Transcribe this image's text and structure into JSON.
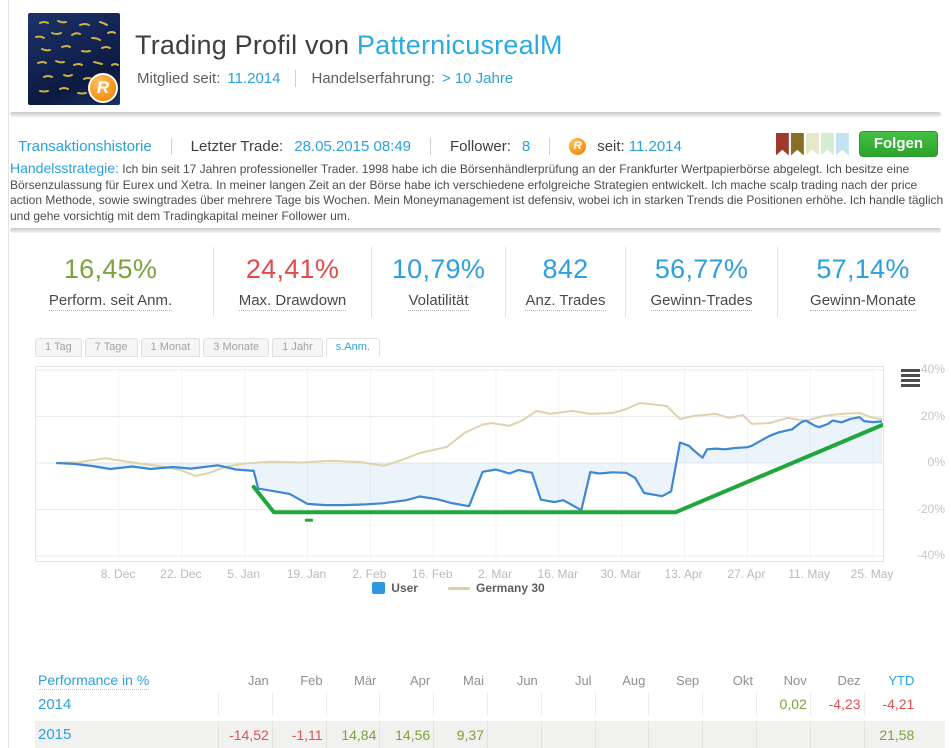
{
  "header": {
    "title_prefix": "Trading Profil von",
    "trader_name": "PatternicusrealM",
    "member_since_label": "Mitglied seit:",
    "member_since_value": "11.2014",
    "experience_label": "Handelserfahrung:",
    "experience_value": "> 10 Jahre",
    "avatar_description": "school of small gold fish on dark blue water",
    "badge_letter": "R"
  },
  "meta_bar": {
    "history_link": "Transaktionshistorie",
    "last_trade_label": "Letzter Trade:",
    "last_trade_value": "28.05.2015 08:49",
    "follower_label": "Follower:",
    "follower_value": "8",
    "since_label": "seit:",
    "since_value": "11.2014",
    "follow_button": "Folgen",
    "follow_button_color": "#35b234",
    "ribbons": [
      {
        "name": "ribbon-dark-red",
        "color": "#9d3a2b"
      },
      {
        "name": "ribbon-olive-gold",
        "color": "#8c6d25"
      },
      {
        "name": "ribbon-cream",
        "color": "#e7e8c9"
      },
      {
        "name": "ribbon-pale-green",
        "color": "#d4edd0"
      },
      {
        "name": "ribbon-pale-blue",
        "color": "#c3e3ef"
      }
    ]
  },
  "strategy": {
    "label": "Handelsstrategie:",
    "text": "Ich bin seit 17 Jahren professioneller Trader. 1998 habe ich die Börsenhändlerprüfung an der Frankfurter Wertpapierbörse abgelegt. Ich besitze eine Börsenzulassung für Eurex und Xetra. In meiner langen Zeit an der Börse habe ich verschiedene erfolgreiche Strategien entwickelt. Ich mache scalp trading nach der price action Methode, sowie swingtrades über mehrere Tage bis Wochen. Mein Moneymanagement ist defensiv, wobei ich in starken Trends die Positionen erhöhe. Ich handle täglich und gehe vorsichtig mit dem Tradingkapital meiner Follower um."
  },
  "stats": [
    {
      "name": "performance-since-signup",
      "value": "16,45%",
      "label": "Perform. seit Anm.",
      "color": "#7ba23c"
    },
    {
      "name": "max-drawdown",
      "value": "24,41%",
      "label": "Max. Drawdown",
      "color": "#e04c4c"
    },
    {
      "name": "volatility",
      "value": "10,79%",
      "label": "Volatilität",
      "color": "#2d9fdf"
    },
    {
      "name": "trade-count",
      "value": "842",
      "label": "Anz. Trades",
      "color": "#2d9fdf"
    },
    {
      "name": "winning-trades",
      "value": "56,77%",
      "label": "Gewinn-Trades",
      "color": "#2d9fdf"
    },
    {
      "name": "winning-months",
      "value": "57,14%",
      "label": "Gewinn-Monate",
      "color": "#2d9fdf"
    }
  ],
  "chart": {
    "tabs": [
      {
        "name": "tab-1-tag",
        "label": "1 Tag",
        "active": false
      },
      {
        "name": "tab-7-tage",
        "label": "7 Tage",
        "active": false
      },
      {
        "name": "tab-1-monat",
        "label": "1 Monat",
        "active": false
      },
      {
        "name": "tab-3-monate",
        "label": "3 Monate",
        "active": false
      },
      {
        "name": "tab-1-jahr",
        "label": "1 Jahr",
        "active": false
      },
      {
        "name": "tab-s-anm",
        "label": "s.Anm.",
        "active": true
      }
    ],
    "legend": [
      {
        "name": "legend-user",
        "label": "User",
        "color": "#2f96e0",
        "swatch": "square"
      },
      {
        "name": "legend-germany-30",
        "label": "Germany 30",
        "color": "#d9cfa6",
        "swatch": "line"
      }
    ]
  },
  "chart_data": {
    "type": "line",
    "x_unit": "days since 24 Nov 2014",
    "ylim": [
      -40,
      40
    ],
    "grid": true,
    "legend_position": "bottom",
    "y_ticks": [
      {
        "label": "40%",
        "value": 40
      },
      {
        "label": "20%",
        "value": 20
      },
      {
        "label": "0%",
        "value": 0
      },
      {
        "label": "-20%",
        "value": -20
      },
      {
        "label": "-40%",
        "value": -40
      }
    ],
    "x_ticks": [
      {
        "label": "8. Dec",
        "day": 14
      },
      {
        "label": "22. Dec",
        "day": 28
      },
      {
        "label": "5. Jan",
        "day": 42
      },
      {
        "label": "19. Jan",
        "day": 56
      },
      {
        "label": "2. Feb",
        "day": 70
      },
      {
        "label": "16. Feb",
        "day": 84
      },
      {
        "label": "2. Mar",
        "day": 98
      },
      {
        "label": "16. Mar",
        "day": 112
      },
      {
        "label": "30. Mar",
        "day": 126
      },
      {
        "label": "13. Apr",
        "day": 140
      },
      {
        "label": "27. Apr",
        "day": 154
      },
      {
        "label": "11. May",
        "day": 168
      },
      {
        "label": "25. May",
        "day": 182
      }
    ],
    "series": [
      {
        "name": "User",
        "color": "#3d87d3",
        "fill_to_zero": true,
        "fill_opacity": 0.1,
        "data": [
          [
            0,
            0
          ],
          [
            4,
            -0.4
          ],
          [
            8,
            -1.3
          ],
          [
            12,
            -2.6
          ],
          [
            17,
            -1.5
          ],
          [
            21,
            -2.6
          ],
          [
            26,
            -1.7
          ],
          [
            30,
            -2.4
          ],
          [
            36,
            -1.0
          ],
          [
            40,
            -2.8
          ],
          [
            44,
            -3.4
          ],
          [
            45,
            -11.0
          ],
          [
            49,
            -12.3
          ],
          [
            52,
            -13.3
          ],
          [
            56,
            -17.6
          ],
          [
            60,
            -18.1
          ],
          [
            64,
            -18.1
          ],
          [
            69,
            -17.8
          ],
          [
            73,
            -17.3
          ],
          [
            78,
            -16.0
          ],
          [
            81,
            -14.4
          ],
          [
            85,
            -15.6
          ],
          [
            88,
            -17.2
          ],
          [
            92,
            -18.6
          ],
          [
            95,
            -3.8
          ],
          [
            98,
            -2.8
          ],
          [
            101,
            -4.5
          ],
          [
            103,
            -3.0
          ],
          [
            106,
            -4.2
          ],
          [
            108,
            -15.8
          ],
          [
            111,
            -16.8
          ],
          [
            113,
            -16.0
          ],
          [
            117,
            -20.3
          ],
          [
            119,
            -3.9
          ],
          [
            121,
            -4.5
          ],
          [
            124,
            -4.0
          ],
          [
            127,
            -4.2
          ],
          [
            129,
            -6.4
          ],
          [
            131,
            -12.9
          ],
          [
            133,
            -13.6
          ],
          [
            135,
            -14.3
          ],
          [
            137,
            -12.2
          ],
          [
            139,
            8.8
          ],
          [
            141,
            7.4
          ],
          [
            142,
            5.5
          ],
          [
            144,
            2.3
          ],
          [
            145,
            5.9
          ],
          [
            147,
            6.2
          ],
          [
            149,
            5.9
          ],
          [
            151,
            6.4
          ],
          [
            154,
            6.8
          ],
          [
            155,
            7.4
          ],
          [
            157,
            9.6
          ],
          [
            159,
            11.7
          ],
          [
            161,
            13.2
          ],
          [
            164,
            14.5
          ],
          [
            166,
            17.5
          ],
          [
            167,
            18.3
          ],
          [
            169,
            16.1
          ],
          [
            170,
            15.4
          ],
          [
            172,
            16.8
          ],
          [
            173,
            18.3
          ],
          [
            175,
            17.5
          ],
          [
            177,
            19.0
          ],
          [
            179,
            19.7
          ],
          [
            180,
            18.0
          ],
          [
            182,
            17.6
          ],
          [
            184,
            17.9
          ]
        ]
      },
      {
        "name": "Germany 30",
        "color": "#ddd3ac",
        "data": [
          [
            0,
            0
          ],
          [
            5,
            0.3
          ],
          [
            11,
            2.0
          ],
          [
            17,
            0.2
          ],
          [
            23,
            -1.3
          ],
          [
            28,
            -3.2
          ],
          [
            31,
            -5.6
          ],
          [
            34,
            -4.3
          ],
          [
            38,
            -1.5
          ],
          [
            42,
            -0.2
          ],
          [
            48,
            0.5
          ],
          [
            55,
            0.2
          ],
          [
            61,
            1.0
          ],
          [
            68,
            0.4
          ],
          [
            73,
            -1.2
          ],
          [
            77,
            1.3
          ],
          [
            81,
            4.3
          ],
          [
            87,
            6.9
          ],
          [
            91,
            13.0
          ],
          [
            95,
            16.5
          ],
          [
            97,
            17.2
          ],
          [
            101,
            16.0
          ],
          [
            104,
            18.5
          ],
          [
            107,
            22.4
          ],
          [
            110,
            21.1
          ],
          [
            115,
            22.4
          ],
          [
            119,
            21.1
          ],
          [
            124,
            21.5
          ],
          [
            127,
            23.2
          ],
          [
            130,
            25.8
          ],
          [
            132,
            25.4
          ],
          [
            136,
            24.5
          ],
          [
            139,
            18.9
          ],
          [
            142,
            20.2
          ],
          [
            147,
            21.1
          ],
          [
            150,
            19.4
          ],
          [
            153,
            20.6
          ],
          [
            155,
            16.8
          ],
          [
            159,
            17.2
          ],
          [
            163,
            19.4
          ],
          [
            167,
            18.1
          ],
          [
            171,
            20.2
          ],
          [
            175,
            21.1
          ],
          [
            179,
            21.5
          ],
          [
            182,
            19.4
          ],
          [
            184,
            18.9
          ]
        ]
      }
    ],
    "trend_line": {
      "name": "trend",
      "color": "#1fa73d",
      "width": 4,
      "data": [
        [
          44,
          -10.3
        ],
        [
          48.5,
          -21.2
        ],
        [
          138,
          -21.2
        ],
        [
          184,
          16.3
        ]
      ],
      "marker": {
        "day": 56.3,
        "value": -24.6
      }
    }
  },
  "table": {
    "title": "Performance in %",
    "months": [
      "Jan",
      "Feb",
      "Mär",
      "Apr",
      "Mai",
      "Jun",
      "Jul",
      "Aug",
      "Sep",
      "Okt",
      "Nov",
      "Dez"
    ],
    "ytd_label": "YTD",
    "pos_color": "#7aa23c",
    "neg_color": "#dc5151",
    "rows": [
      {
        "year": "2014",
        "shaded": false,
        "cells": {
          "Nov": "0,02",
          "Dez": "-4,23"
        },
        "ytd": "-4,21"
      },
      {
        "year": "2015",
        "shaded": true,
        "cells": {
          "Jan": "-14,52",
          "Feb": "-1,11",
          "Mär": "14,84",
          "Apr": "14,56",
          "Mai": "9,37"
        },
        "ytd": "21,58"
      }
    ]
  }
}
